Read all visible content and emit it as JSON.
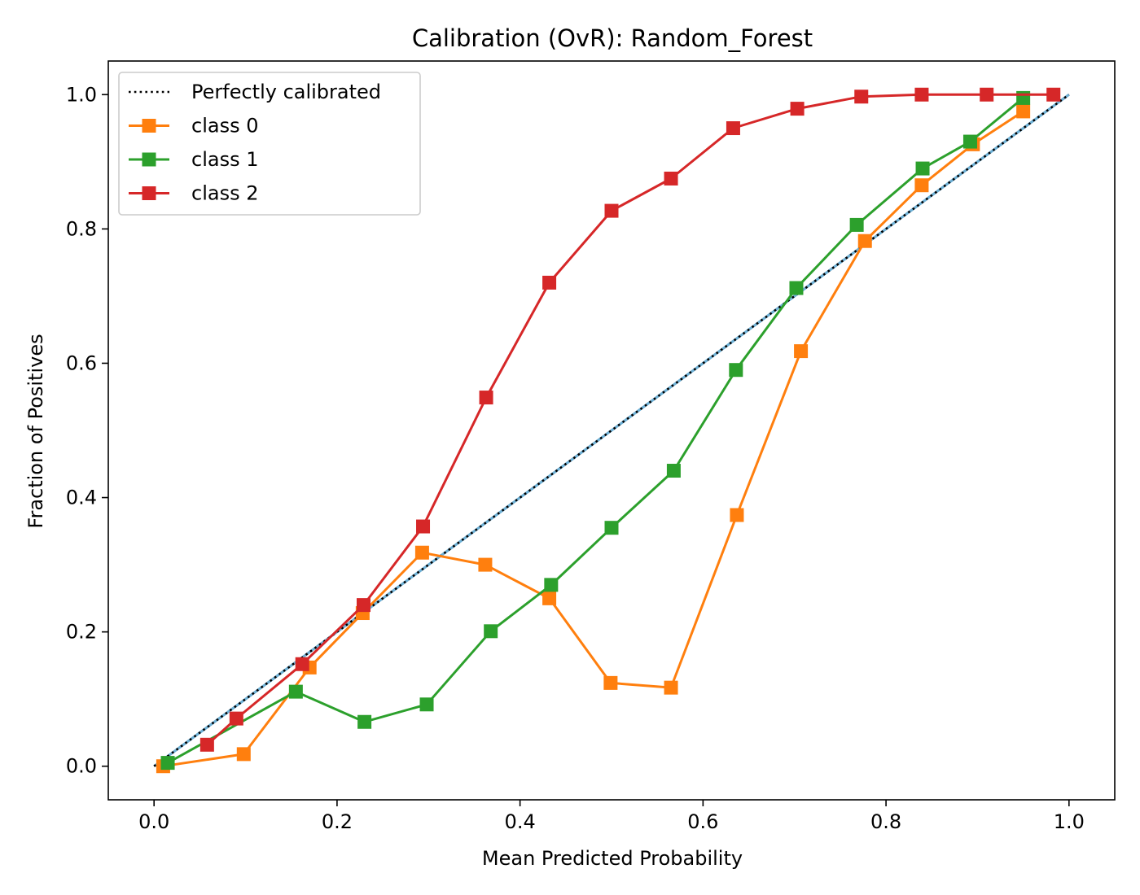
{
  "chart_data": {
    "type": "line",
    "title": "Calibration (OvR): Random_Forest",
    "xlabel": "Mean Predicted Probability",
    "ylabel": "Fraction of Positives",
    "xlim": [
      -0.05,
      1.05
    ],
    "ylim": [
      -0.05,
      1.05
    ],
    "xticks": [
      "0.0",
      "0.2",
      "0.4",
      "0.6",
      "0.8",
      "1.0"
    ],
    "yticks": [
      "0.0",
      "0.2",
      "0.4",
      "0.6",
      "0.8",
      "1.0"
    ],
    "grid": false,
    "legend_position": "upper-left",
    "reference": {
      "name": "Perfectly calibrated",
      "x": [
        0,
        1
      ],
      "y": [
        0,
        1
      ],
      "color": "#000000",
      "style": "dotted"
    },
    "series": [
      {
        "name": "class 0",
        "color": "#ff7f0e",
        "marker": "square",
        "x": [
          0.01,
          0.098,
          0.17,
          0.228,
          0.293,
          0.362,
          0.432,
          0.499,
          0.565,
          0.637,
          0.707,
          0.777,
          0.839,
          0.895,
          0.95
        ],
        "y": [
          0.0,
          0.018,
          0.147,
          0.228,
          0.318,
          0.3,
          0.25,
          0.124,
          0.117,
          0.374,
          0.618,
          0.782,
          0.865,
          0.926,
          0.975
        ]
      },
      {
        "name": "class 1",
        "color": "#2ca02c",
        "marker": "square",
        "x": [
          0.015,
          0.155,
          0.23,
          0.298,
          0.368,
          0.434,
          0.5,
          0.568,
          0.636,
          0.702,
          0.768,
          0.84,
          0.892,
          0.95
        ],
        "y": [
          0.005,
          0.111,
          0.066,
          0.092,
          0.201,
          0.27,
          0.355,
          0.44,
          0.59,
          0.712,
          0.806,
          0.89,
          0.93,
          0.995
        ]
      },
      {
        "name": "class 2",
        "color": "#d62728",
        "marker": "square",
        "x": [
          0.058,
          0.09,
          0.162,
          0.229,
          0.294,
          0.363,
          0.432,
          0.5,
          0.565,
          0.633,
          0.703,
          0.773,
          0.839,
          0.91,
          0.983
        ],
        "y": [
          0.032,
          0.071,
          0.152,
          0.24,
          0.357,
          0.549,
          0.72,
          0.827,
          0.875,
          0.95,
          0.979,
          0.997,
          1.0,
          1.0,
          1.0
        ]
      }
    ]
  }
}
